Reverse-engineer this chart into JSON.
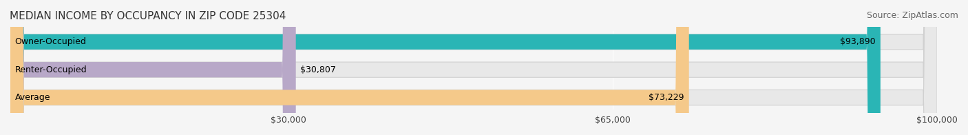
{
  "title": "MEDIAN INCOME BY OCCUPANCY IN ZIP CODE 25304",
  "source": "Source: ZipAtlas.com",
  "categories": [
    "Owner-Occupied",
    "Renter-Occupied",
    "Average"
  ],
  "values": [
    93890,
    30807,
    73229
  ],
  "labels": [
    "$93,890",
    "$30,807",
    "$73,229"
  ],
  "bar_colors": [
    "#2ab5b5",
    "#b8a8c8",
    "#f5c98a"
  ],
  "bar_edge_colors": [
    "#2ab5b5",
    "#b8a8c8",
    "#f5c98a"
  ],
  "x_max": 100000,
  "x_ticks": [
    30000,
    65000,
    100000
  ],
  "x_tick_labels": [
    "$30,000",
    "$65,000",
    "$100,000"
  ],
  "background_color": "#f5f5f5",
  "bar_background_color": "#e8e8e8",
  "title_fontsize": 11,
  "source_fontsize": 9,
  "label_fontsize": 9,
  "category_fontsize": 9
}
